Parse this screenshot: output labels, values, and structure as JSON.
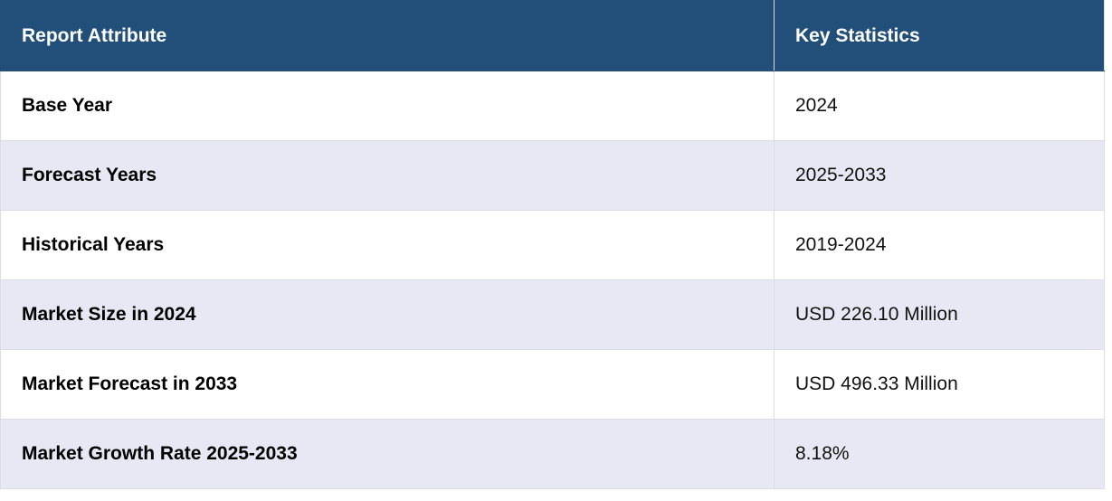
{
  "table": {
    "header": [
      "Report Attribute",
      "Key Statistics"
    ],
    "rows": [
      [
        "Base Year",
        "2024"
      ],
      [
        "Forecast Years",
        "2025-2033"
      ],
      [
        "Historical Years",
        "2019-2024"
      ],
      [
        "Market Size in 2024",
        "USD 226.10 Million"
      ],
      [
        "Market Forecast in 2033",
        "USD 496.33 Million"
      ],
      [
        "Market Growth Rate 2025-2033",
        "8.18%"
      ]
    ]
  }
}
